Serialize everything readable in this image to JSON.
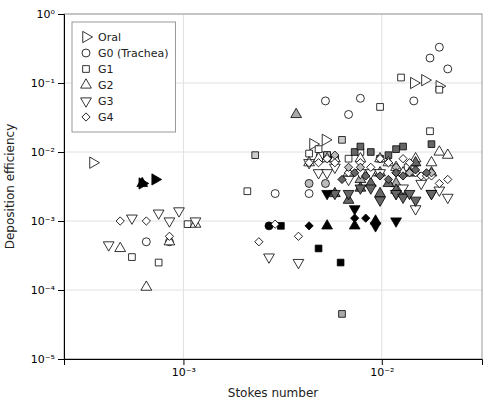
{
  "chart_data": {
    "type": "scatter",
    "xlabel": "Stokes number",
    "ylabel": "Deposition efficiency",
    "log": true,
    "grid": true,
    "legend": "upper left",
    "xlim": [
      0.00025,
      0.032
    ],
    "ylim": [
      1e-05,
      1.0
    ],
    "xticks": [
      {
        "value": 0.001,
        "label": "10⁻³"
      },
      {
        "value": 0.01,
        "label": "10⁻²"
      }
    ],
    "yticks": [
      {
        "value": 1e-05,
        "label": "10⁻⁵"
      },
      {
        "value": 0.0001,
        "label": "10⁻⁴"
      },
      {
        "value": 0.001,
        "label": "10⁻³"
      },
      {
        "value": 0.01,
        "label": "10⁻²"
      },
      {
        "value": 0.1,
        "label": "10⁻¹"
      },
      {
        "value": 1.0,
        "label": "10⁰"
      }
    ],
    "series": [
      {
        "name": "Oral",
        "marker": "triangle-right",
        "color": "white",
        "x": [
          0.00035,
          0.0045,
          0.0052,
          0.0145,
          0.0165,
          0.0195
        ],
        "values": [
          0.007,
          0.013,
          0.015,
          0.1,
          0.11,
          0.09
        ]
      },
      {
        "marker": "triangle-right",
        "color": "black",
        "x": [
          0.00062,
          0.00072
        ],
        "values": [
          0.0035,
          0.004
        ]
      },
      {
        "name": "G0 (Trachea)",
        "marker": "circle",
        "color": "white",
        "x": [
          0.00065,
          0.00085,
          0.0029,
          0.0043,
          0.0049,
          0.0052,
          0.0068,
          0.0078,
          0.0145,
          0.0175,
          0.0195,
          0.0215
        ],
        "values": [
          0.0005,
          0.0005,
          0.0025,
          0.0025,
          0.009,
          0.055,
          0.035,
          0.06,
          0.055,
          0.23,
          0.33,
          0.16
        ]
      },
      {
        "marker": "circle",
        "color": "#bbbbbb",
        "x": [
          0.0043,
          0.0052
        ],
        "values": [
          0.0035,
          0.0035
        ]
      },
      {
        "marker": "circle",
        "color": "black",
        "x": [
          0.0027
        ],
        "values": [
          0.00085
        ]
      },
      {
        "name": "G1",
        "marker": "square",
        "color": "white",
        "x": [
          0.00055,
          0.00075,
          0.00105,
          0.0021,
          0.0043,
          0.0048,
          0.0053,
          0.0058,
          0.0068,
          0.0078,
          0.0098,
          0.0125,
          0.0135,
          0.0175,
          0.0195
        ],
        "values": [
          0.0003,
          0.00025,
          0.0009,
          0.0027,
          0.0095,
          0.011,
          0.009,
          0.008,
          0.008,
          0.01,
          0.045,
          0.12,
          0.006,
          0.02,
          0.08
        ]
      },
      {
        "marker": "square",
        "color": "#cccccc",
        "x": [
          0.0023,
          0.0053,
          0.0063
        ],
        "values": [
          0.009,
          0.009,
          0.015
        ]
      },
      {
        "marker": "square",
        "color": "#666666",
        "x": [
          0.0058,
          0.0073,
          0.0078,
          0.0088,
          0.0098,
          0.0108,
          0.0118,
          0.0128,
          0.0148,
          0.0178
        ],
        "values": [
          0.008,
          0.01,
          0.012,
          0.01,
          0.008,
          0.009,
          0.011,
          0.012,
          0.007,
          0.013
        ]
      },
      {
        "marker": "square",
        "color": "black",
        "x": [
          0.0031,
          0.0048,
          0.0062
        ],
        "values": [
          0.00085,
          0.0004,
          0.00025
        ]
      },
      {
        "marker": "square",
        "color": "#aaaaaa",
        "x": [
          0.0063
        ],
        "values": [
          4.5e-05
        ]
      },
      {
        "name": "G2",
        "marker": "triangle-up",
        "color": "white",
        "x": [
          0.00048,
          0.00065,
          0.00085,
          0.00115,
          0.0043,
          0.0048,
          0.0053,
          0.0058,
          0.0068,
          0.0078,
          0.0088,
          0.0098,
          0.0108,
          0.0118,
          0.0128,
          0.0148,
          0.0178,
          0.0195,
          0.0215
        ],
        "values": [
          0.0004,
          0.00011,
          0.0005,
          0.0009,
          0.007,
          0.008,
          0.008,
          0.008,
          0.005,
          0.008,
          0.005,
          0.008,
          0.007,
          0.006,
          0.005,
          0.008,
          0.007,
          0.01,
          0.009
        ]
      },
      {
        "marker": "triangle-up",
        "color": "#aaaaaa",
        "x": [
          0.0037
        ],
        "values": [
          0.035
        ]
      },
      {
        "marker": "triangle-up",
        "color": "#aaaaaa",
        "x": [
          0.0078,
          0.0098,
          0.0118,
          0.0148,
          0.0178
        ],
        "values": [
          0.004,
          0.005,
          0.0035,
          0.005,
          0.005
        ]
      },
      {
        "marker": "triangle-up",
        "color": "#666666",
        "x": [
          0.0058,
          0.0068,
          0.0078,
          0.0088,
          0.0098,
          0.0108,
          0.0118,
          0.0128,
          0.0138,
          0.0148
        ],
        "values": [
          0.0025,
          0.002,
          0.003,
          0.0035,
          0.0025,
          0.0035,
          0.0028,
          0.0025,
          0.005,
          0.007
        ]
      },
      {
        "marker": "triangle-up",
        "color": "black",
        "x": [
          0.00062,
          0.0053,
          0.0073,
          0.0093
        ],
        "values": [
          0.0035,
          0.00085,
          0.00085,
          0.001
        ]
      },
      {
        "name": "G3",
        "marker": "triangle-down",
        "color": "white",
        "x": [
          0.00042,
          0.00055,
          0.00075,
          0.00085,
          0.00095,
          0.00115,
          0.0027,
          0.0038,
          0.0043,
          0.0048,
          0.0053,
          0.0058,
          0.0068,
          0.0078,
          0.0088,
          0.0098,
          0.0118,
          0.0128,
          0.0148,
          0.0158,
          0.0178,
          0.0195,
          0.0215
        ],
        "values": [
          0.00045,
          0.0011,
          0.0013,
          0.001,
          0.0014,
          0.001,
          0.0003,
          0.00025,
          0.007,
          0.005,
          0.005,
          0.006,
          0.004,
          0.005,
          0.005,
          0.005,
          0.0025,
          0.003,
          0.0015,
          0.0035,
          0.0025,
          0.0028,
          0.0022
        ]
      },
      {
        "marker": "triangle-down",
        "color": "#666666",
        "x": [
          0.0058,
          0.0068,
          0.0078,
          0.0088,
          0.0098,
          0.0118,
          0.0128,
          0.0138,
          0.0148,
          0.0178
        ],
        "values": [
          0.0025,
          0.0025,
          0.003,
          0.003,
          0.002,
          0.0025,
          0.0022,
          0.0025,
          0.002,
          0.0025
        ]
      },
      {
        "marker": "triangle-down",
        "color": "black",
        "x": [
          0.0053,
          0.0073,
          0.0093,
          0.0118
        ],
        "values": [
          0.0025,
          0.0015,
          0.00085,
          0.001
        ]
      },
      {
        "name": "G4",
        "marker": "diamond",
        "color": "white",
        "x": [
          0.00048,
          0.00065,
          0.00085,
          0.0024,
          0.0029,
          0.0038,
          0.0043,
          0.0048,
          0.0053,
          0.0058,
          0.0068,
          0.0078,
          0.0088,
          0.0098,
          0.0108,
          0.0118,
          0.0128,
          0.0138,
          0.0148,
          0.0158,
          0.0168,
          0.0178,
          0.0195,
          0.0215
        ],
        "values": [
          0.001,
          0.001,
          0.0006,
          0.0005,
          0.0009,
          0.0006,
          0.007,
          0.007,
          0.008,
          0.007,
          0.005,
          0.007,
          0.006,
          0.008,
          0.007,
          0.005,
          0.008,
          0.007,
          0.005,
          0.0045,
          0.0045,
          0.0045,
          0.0035,
          0.004
        ]
      },
      {
        "marker": "diamond",
        "color": "#bbbbbb",
        "x": [
          0.0058,
          0.0068,
          0.0078,
          0.0118,
          0.0138,
          0.0178
        ],
        "values": [
          0.009,
          0.006,
          0.006,
          0.006,
          0.005,
          0.005
        ]
      },
      {
        "marker": "diamond",
        "color": "#666666",
        "x": [
          0.0063,
          0.0073,
          0.0083,
          0.0098,
          0.0108,
          0.0118,
          0.0128,
          0.0148,
          0.0168
        ],
        "values": [
          0.004,
          0.005,
          0.0045,
          0.0045,
          0.004,
          0.005,
          0.0045,
          0.0055,
          0.005
        ]
      },
      {
        "marker": "diamond",
        "color": "black",
        "x": [
          0.0043,
          0.0073,
          0.0083
        ],
        "values": [
          0.00085,
          0.0011,
          0.0011
        ]
      }
    ]
  }
}
